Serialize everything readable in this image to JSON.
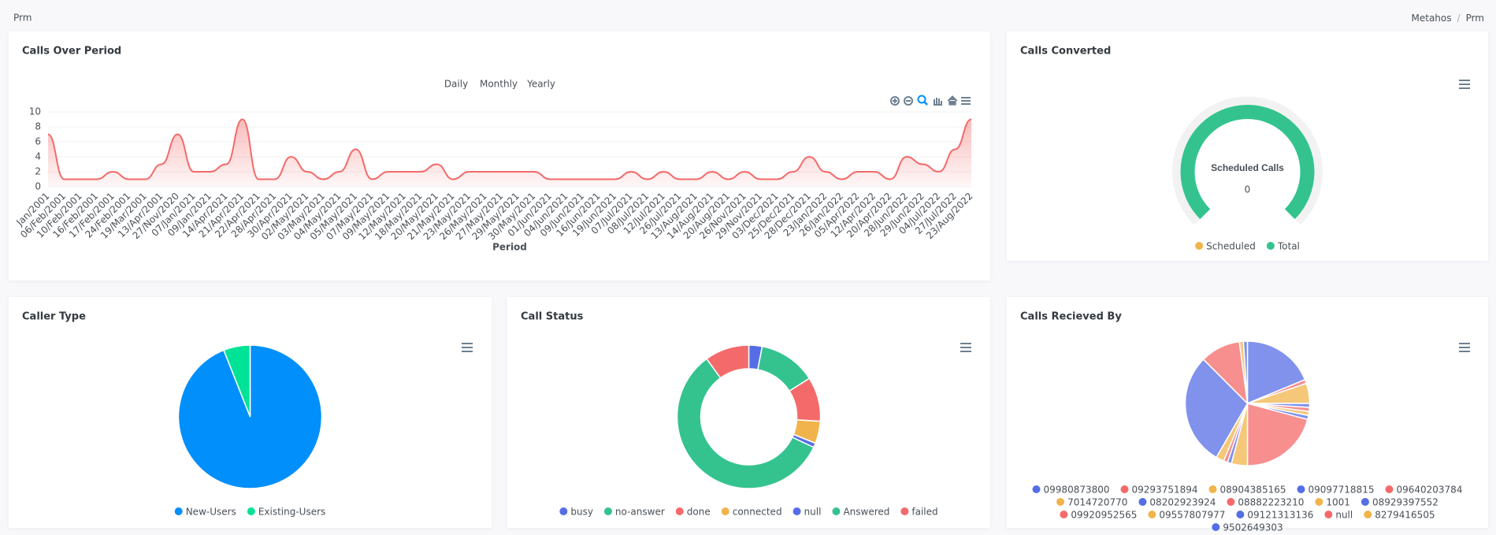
{
  "header": {
    "title": "Prm",
    "breadcrumb": [
      "Metahos",
      "Prm"
    ],
    "breadcrumb_separator": "/"
  },
  "chart_data": [
    {
      "type": "area",
      "title": "Calls Over Period",
      "range_buttons": [
        "Daily",
        "Monthly",
        "Yearly"
      ],
      "x_label": "Period",
      "categories": [
        "Jan/2001",
        "06/Feb/2001",
        "10/Feb/2001",
        "16/Feb/2001",
        "17/Feb/2001",
        "24/Feb/2001",
        "19/Mar/2001",
        "13/Apr/2001",
        "27/Nov/2020",
        "07/Jan/2021",
        "09/Jan/2021",
        "14/Apr/2021",
        "21/Apr/2021",
        "22/Apr/2021",
        "28/Apr/2021",
        "30/Apr/2021",
        "02/May/2021",
        "03/May/2021",
        "04/May/2021",
        "05/May/2021",
        "07/May/2021",
        "09/May/2021",
        "12/May/2021",
        "18/May/2021",
        "20/May/2021",
        "21/May/2021",
        "23/May/2021",
        "26/May/2021",
        "27/May/2021",
        "29/May/2021",
        "30/May/2021",
        "01/Jun/2021",
        "04/Jun/2021",
        "09/Jun/2021",
        "16/Jun/2021",
        "19/Jun/2021",
        "07/Jul/2021",
        "08/Jul/2021",
        "12/Jul/2021",
        "26/Jul/2021",
        "13/Aug/2021",
        "14/Aug/2021",
        "20/Aug/2021",
        "26/Nov/2021",
        "29/Nov/2021",
        "03/Dec/2021",
        "25/Dec/2021",
        "28/Dec/2021",
        "23/Jan/2022",
        "26/Jan/2022",
        "05/Apr/2022",
        "12/Apr/2022",
        "20/Apr/2022",
        "28/Jun/2022",
        "29/Jun/2022",
        "04/Jul/2022",
        "27/Jul/2022",
        "23/Aug/2022"
      ],
      "values": [
        7,
        1,
        1,
        1,
        2,
        1,
        1,
        3,
        7,
        2,
        2,
        3,
        9,
        1,
        1,
        4,
        2,
        1,
        2,
        5,
        1,
        2,
        2,
        2,
        3,
        1,
        2,
        2,
        2,
        2,
        2,
        1,
        1,
        1,
        1,
        1,
        2,
        1,
        2,
        1,
        1,
        2,
        1,
        2,
        1,
        1,
        2,
        4,
        2,
        1,
        2,
        2,
        1,
        4,
        3,
        2,
        5,
        9
      ],
      "color": "#f46a6a",
      "ylim": [
        0,
        10
      ],
      "yticks": [
        0,
        2,
        4,
        6,
        8,
        10
      ],
      "grid": true
    },
    {
      "type": "radialBar",
      "title": "Calls Converted",
      "label": "Scheduled Calls",
      "series": [
        {
          "name": "Scheduled",
          "color": "#f1b44c",
          "value": 0
        },
        {
          "name": "Total",
          "color": "#34c38f",
          "value": 100
        }
      ],
      "ylim": [
        0,
        100
      ]
    },
    {
      "type": "pie",
      "title": "Caller Type",
      "categories": [
        "New-Users",
        "Existing-Users"
      ],
      "values": [
        94,
        6
      ],
      "colors": [
        "#008ffb",
        "#00e396"
      ]
    },
    {
      "type": "donut",
      "title": "Call Status",
      "categories": [
        "busy",
        "no-answer",
        "done",
        "connected",
        "null",
        "Answered",
        "failed"
      ],
      "values": [
        3,
        13,
        10,
        5,
        1,
        58,
        10
      ],
      "colors": [
        "#556ee6",
        "#34c38f",
        "#f46a6a",
        "#f1b44c",
        "#556ee6",
        "#34c38f",
        "#f46a6a"
      ]
    },
    {
      "type": "pie",
      "title": "Calls Recieved By",
      "categories": [
        "09980873800",
        "09293751894",
        "08904385165",
        "09097718815",
        "09640203784",
        "7014720770",
        "08202923924",
        "08882223210",
        "1001",
        "08929397552",
        "09920952565",
        "09557807977",
        "09121313136",
        "null",
        "8279416505",
        "9502649303"
      ],
      "values": [
        18,
        1,
        5,
        1,
        1,
        1,
        1,
        20,
        4,
        1,
        1,
        2,
        28,
        10,
        1,
        1
      ],
      "colors": [
        "#556ee6",
        "#f46a6a",
        "#f1b44c",
        "#556ee6",
        "#f46a6a",
        "#f1b44c",
        "#556ee6",
        "#f46a6a",
        "#f1b44c",
        "#556ee6",
        "#f46a6a",
        "#f1b44c",
        "#556ee6",
        "#f46a6a",
        "#f1b44c",
        "#556ee6"
      ],
      "fill_opacity": 0.75
    }
  ]
}
